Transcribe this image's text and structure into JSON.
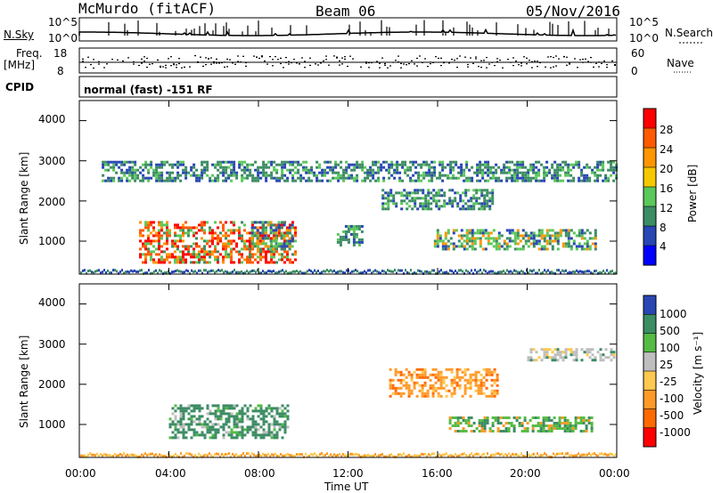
{
  "header": {
    "station": "McMurdo (fitACF)",
    "beam": "Beam 06",
    "date": "05/Nov/2016"
  },
  "noise_panel": {
    "left_label": "N.Sky",
    "right_label": "N.Search",
    "left_ticks": [
      "10^5",
      "10^0"
    ],
    "right_ticks": [
      "10^5",
      "10^0"
    ]
  },
  "freq_panel": {
    "left_label_line1": "Freq.",
    "left_label_line2": "[MHz]",
    "right_label": "Nave",
    "left_ticks": [
      "18",
      "8"
    ],
    "right_ticks": [
      "60",
      "0"
    ]
  },
  "cpid": {
    "label": "CPID",
    "value": "normal (fast) -151 RF"
  },
  "chart_data": [
    {
      "type": "heatmap",
      "name": "Power",
      "ylabel": "Slant Range [km]",
      "yticks": [
        "4000",
        "3000",
        "2000",
        "1000"
      ],
      "ylim": [
        180,
        4500
      ],
      "xlim": [
        "00:00",
        "24:00"
      ],
      "colorbar": {
        "label": "Power [dB]",
        "ticks": [
          "28",
          "24",
          "20",
          "16",
          "12",
          "8",
          "4"
        ],
        "colors": [
          "#ff0000",
          "#ff5a00",
          "#ff9600",
          "#f5c800",
          "#5ac85a",
          "#3c8c64",
          "#2846b4",
          "#0000ff"
        ]
      },
      "echo_regions": [
        {
          "t_start": "02:40",
          "t_end": "09:40",
          "range_min": 500,
          "range_max": 1500,
          "level": "high"
        },
        {
          "t_start": "07:40",
          "t_end": "09:30",
          "range_min": 800,
          "range_max": 1500,
          "level": "medium"
        },
        {
          "t_start": "01:00",
          "t_end": "24:00",
          "range_min": 2500,
          "range_max": 3000,
          "level": "low"
        },
        {
          "t_start": "11:30",
          "t_end": "12:40",
          "range_min": 900,
          "range_max": 1400,
          "level": "low"
        },
        {
          "t_start": "13:30",
          "t_end": "18:30",
          "range_min": 1800,
          "range_max": 2300,
          "level": "low"
        },
        {
          "t_start": "15:50",
          "t_end": "23:00",
          "range_min": 800,
          "range_max": 1300,
          "level": "medium"
        }
      ]
    },
    {
      "type": "heatmap",
      "name": "Velocity",
      "ylabel": "Slant Range [km]",
      "yticks": [
        "4000",
        "3000",
        "2000",
        "1000"
      ],
      "ylim": [
        180,
        4500
      ],
      "xlim": [
        "00:00",
        "24:00"
      ],
      "xticks": [
        "00:00",
        "04:00",
        "08:00",
        "12:00",
        "16:00",
        "20:00",
        "00:00"
      ],
      "xlabel": "Time UT",
      "colorbar": {
        "label": "Velocity [m s⁻¹]",
        "ticks": [
          "1000",
          "500",
          "100",
          "25",
          "-25",
          "-100",
          "-500",
          "-1000"
        ],
        "colors": [
          "#2846b4",
          "#3c8c64",
          "#55bb44",
          "#bebebe",
          "#ffc850",
          "#ff9a28",
          "#ff6a00",
          "#ff0000"
        ]
      },
      "echo_regions": [
        {
          "t_start": "04:00",
          "t_end": "09:20",
          "range_min": 700,
          "range_max": 1500,
          "velocity": "~500"
        },
        {
          "t_start": "13:50",
          "t_end": "18:40",
          "range_min": 1700,
          "range_max": 2400,
          "velocity": "~-300"
        },
        {
          "t_start": "16:30",
          "t_end": "22:50",
          "range_min": 850,
          "range_max": 1200,
          "velocity": "~100"
        },
        {
          "t_start": "20:00",
          "t_end": "23:50",
          "range_min": 2600,
          "range_max": 2900,
          "velocity": "~-25"
        }
      ]
    }
  ]
}
